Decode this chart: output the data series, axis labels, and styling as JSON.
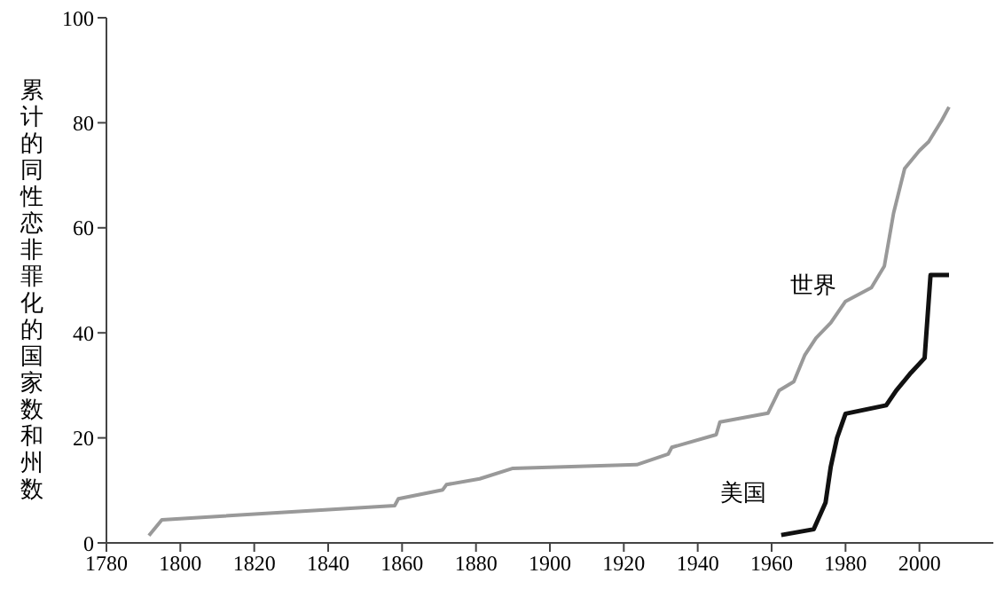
{
  "chart_data": {
    "type": "line",
    "ylabel": "累计的同性恋非罪化的国家数和州数",
    "xlim": [
      1780,
      2020
    ],
    "xticks": [
      1780,
      1800,
      1820,
      1840,
      1860,
      1880,
      1900,
      1920,
      1940,
      1960,
      1980,
      2000
    ],
    "ylim": [
      0,
      100
    ],
    "yticks": [
      0,
      20,
      40,
      60,
      80,
      100
    ],
    "grid": false,
    "legend": false,
    "marker": "none",
    "line_style": "solid",
    "series": [
      {
        "name": "世界",
        "color": "#999999",
        "x": [
          1791.5,
          1795,
          1858,
          1859,
          1871,
          1872,
          1881,
          1890,
          1923.5,
          1932,
          1933,
          1945,
          1946,
          1959,
          1962,
          1966,
          1969,
          1972,
          1976,
          1980,
          1987,
          1990.5,
          1993,
          1996,
          2000,
          2002.5,
          2006,
          2008
        ],
        "values": [
          1.4,
          4.4,
          7.1,
          8.4,
          10.1,
          11.1,
          12.2,
          14.2,
          14.9,
          16.9,
          18.2,
          20.6,
          23,
          24.7,
          29,
          30.7,
          35.8,
          39,
          41.9,
          46,
          48.6,
          52.7,
          62.8,
          71.3,
          74.7,
          76.4,
          80.4,
          83
        ]
      },
      {
        "name": "美国",
        "color": "#111111",
        "x": [
          1962.6,
          1971.4,
          1974.6,
          1976,
          1977.7,
          1980,
          1991,
          1993.7,
          1997.7,
          2001.4,
          2003,
          2008
        ],
        "values": [
          1.5,
          2.6,
          7.7,
          14.5,
          20,
          24.6,
          26.2,
          29,
          32.4,
          35.2,
          51,
          51
        ]
      }
    ]
  }
}
